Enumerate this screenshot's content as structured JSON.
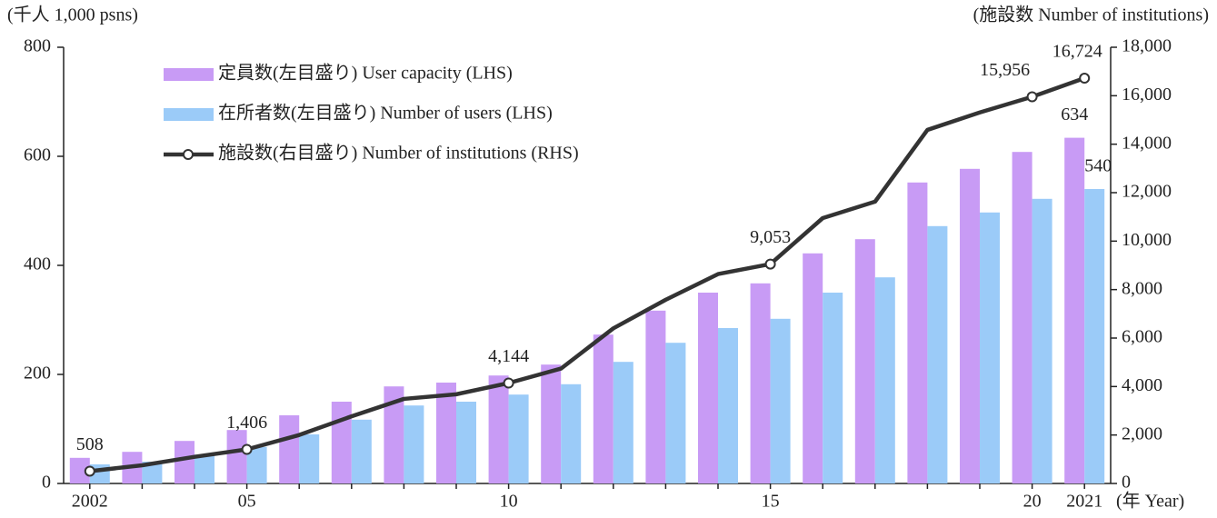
{
  "chart_data": {
    "type": "bar-line",
    "y_label": "(千人 1,000 psns)",
    "y2_label": "(施設数 Number of institutions)",
    "x_label": "(年 Year)",
    "categories": [
      "2002",
      null,
      null,
      "05",
      null,
      null,
      null,
      null,
      "10",
      null,
      null,
      null,
      null,
      "15",
      null,
      null,
      null,
      null,
      "20",
      "2021"
    ],
    "ylim": [
      0,
      800
    ],
    "yticks": [
      0,
      200,
      400,
      600,
      800
    ],
    "y2lim": [
      0,
      18000
    ],
    "y2ticks": [
      0,
      {
        "value": 2000,
        "label": "2,000"
      },
      {
        "value": 4000,
        "label": "4,000"
      },
      {
        "value": 6000,
        "label": "6,000"
      },
      {
        "value": 8000,
        "label": "8,000"
      },
      {
        "value": 10000,
        "label": "10,000"
      },
      {
        "value": 12000,
        "label": "12,000"
      },
      {
        "value": 14000,
        "label": "14,000"
      },
      {
        "value": 16000,
        "label": "16,000"
      },
      {
        "value": 18000,
        "label": "18,000"
      }
    ],
    "series": [
      {
        "name": "定員数(左目盛り) User capacity (LHS)",
        "type": "bar",
        "color": "#c89bf5",
        "values": [
          47,
          58,
          78,
          98,
          125,
          150,
          178,
          185,
          198,
          218,
          273,
          317,
          350,
          367,
          422,
          448,
          552,
          577,
          608,
          634
        ],
        "value_labels": [
          null,
          null,
          null,
          null,
          null,
          null,
          null,
          null,
          null,
          null,
          null,
          null,
          null,
          null,
          null,
          null,
          null,
          null,
          null,
          "634"
        ]
      },
      {
        "name": "在所者数(左目盛り) Number of users (LHS)",
        "type": "bar",
        "color": "#9bcbf8",
        "values": [
          35,
          40,
          53,
          67,
          90,
          117,
          143,
          150,
          163,
          182,
          223,
          258,
          285,
          302,
          350,
          378,
          472,
          497,
          522,
          540
        ],
        "value_labels": [
          null,
          null,
          null,
          null,
          null,
          null,
          null,
          null,
          null,
          null,
          null,
          null,
          null,
          null,
          null,
          null,
          null,
          null,
          null,
          "540"
        ]
      },
      {
        "name": "施設数(右目盛り) Number of institutions (RHS)",
        "type": "line",
        "color": "#333333",
        "axis": "y2",
        "values": [
          508,
          750,
          1100,
          1406,
          2000,
          2770,
          3490,
          3680,
          4144,
          4740,
          6400,
          7580,
          8640,
          9053,
          10950,
          11630,
          14590,
          15310,
          15956,
          16724
        ],
        "value_labels": [
          "508",
          null,
          null,
          "1,406",
          null,
          null,
          null,
          null,
          "4,144",
          null,
          null,
          null,
          null,
          "9,053",
          null,
          null,
          null,
          null,
          "15,956",
          "16,724"
        ]
      }
    ]
  }
}
